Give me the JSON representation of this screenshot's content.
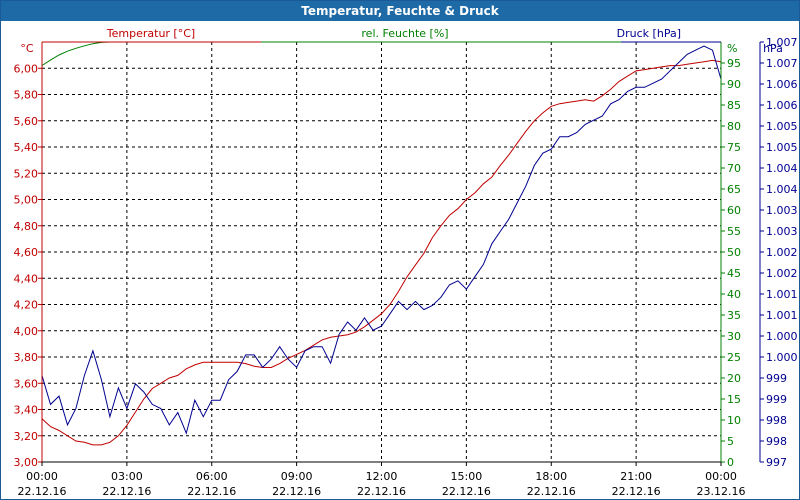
{
  "window": {
    "title": "Temperatur, Feuchte & Druck"
  },
  "colors": {
    "temp": "#c00000",
    "hum": "#008000",
    "press": "#000090",
    "grid": "#000000",
    "title_bar": "#1d6aa6"
  },
  "chart_data": {
    "type": "line",
    "title": "Temperatur, Feuchte & Druck",
    "grid": true,
    "x_ticks": [
      {
        "time": "00:00",
        "date": "22.12.16"
      },
      {
        "time": "03:00",
        "date": "22.12.16"
      },
      {
        "time": "06:00",
        "date": "22.12.16"
      },
      {
        "time": "09:00",
        "date": "22.12.16"
      },
      {
        "time": "12:00",
        "date": "22.12.16"
      },
      {
        "time": "15:00",
        "date": "22.12.16"
      },
      {
        "time": "18:00",
        "date": "22.12.16"
      },
      {
        "time": "21:00",
        "date": "22.12.16"
      },
      {
        "time": "00:00",
        "date": "23.12.16"
      }
    ],
    "x_range_hours": [
      0,
      24
    ],
    "axes": {
      "temp": {
        "label": "Temperatur [°C]",
        "unit": "°C",
        "range": [
          3.0,
          6.2
        ],
        "ticks": [
          "3,00",
          "3,20",
          "3,40",
          "3,60",
          "3,80",
          "4,00",
          "4,20",
          "4,40",
          "4,60",
          "4,80",
          "5,00",
          "5,20",
          "5,40",
          "5,60",
          "5,80",
          "6,00"
        ]
      },
      "hum": {
        "label": "rel. Feuchte [%]",
        "unit": "%",
        "range": [
          0,
          100
        ],
        "ticks": [
          "0",
          "5",
          "10",
          "15",
          "20",
          "25",
          "30",
          "35",
          "40",
          "45",
          "50",
          "55",
          "60",
          "65",
          "70",
          "75",
          "80",
          "85",
          "90",
          "95"
        ]
      },
      "press": {
        "label": "Druck [hPa]",
        "unit": "hPa",
        "range": [
          997,
          1007.2
        ],
        "ticks": [
          "997",
          "998",
          "998",
          "999",
          "999",
          "1.000",
          "1.000",
          "1.001",
          "1.001",
          "1.002",
          "1.002",
          "1.003",
          "1.003",
          "1.004",
          "1.004",
          "1.005",
          "1.005",
          "1.006",
          "1.006",
          "1.007",
          "1.007"
        ]
      }
    },
    "series": [
      {
        "name": "Temperatur [°C]",
        "axis": "temp",
        "x": [
          0,
          0.3,
          0.6,
          0.9,
          1.2,
          1.5,
          1.8,
          2.1,
          2.4,
          2.7,
          3.0,
          3.3,
          3.6,
          3.9,
          4.2,
          4.5,
          4.8,
          5.1,
          5.4,
          5.7,
          6.0,
          6.3,
          6.6,
          6.9,
          7.2,
          7.5,
          7.8,
          8.1,
          8.4,
          8.7,
          9.0,
          9.3,
          9.6,
          9.9,
          10.2,
          10.5,
          10.8,
          11.1,
          11.4,
          11.7,
          12.0,
          12.3,
          12.6,
          12.9,
          13.2,
          13.5,
          13.8,
          14.1,
          14.4,
          14.7,
          15.0,
          15.3,
          15.6,
          15.9,
          16.2,
          16.5,
          16.8,
          17.1,
          17.4,
          17.7,
          18.0,
          18.3,
          18.6,
          18.9,
          19.2,
          19.5,
          19.8,
          20.1,
          20.4,
          20.7,
          21.0,
          21.3,
          21.6,
          21.9,
          22.2,
          22.5,
          22.8,
          23.1,
          23.4,
          23.7,
          24.0
        ],
        "values": [
          3.33,
          3.27,
          3.24,
          3.2,
          3.16,
          3.15,
          3.13,
          3.13,
          3.15,
          3.2,
          3.28,
          3.38,
          3.48,
          3.56,
          3.6,
          3.64,
          3.66,
          3.71,
          3.74,
          3.76,
          3.76,
          3.76,
          3.76,
          3.76,
          3.75,
          3.73,
          3.72,
          3.72,
          3.75,
          3.79,
          3.82,
          3.85,
          3.89,
          3.93,
          3.95,
          3.96,
          3.97,
          3.99,
          4.03,
          4.08,
          4.13,
          4.2,
          4.3,
          4.41,
          4.5,
          4.59,
          4.71,
          4.8,
          4.88,
          4.93,
          5.0,
          5.05,
          5.12,
          5.17,
          5.26,
          5.34,
          5.43,
          5.52,
          5.6,
          5.66,
          5.71,
          5.73,
          5.74,
          5.75,
          5.76,
          5.75,
          5.79,
          5.84,
          5.9,
          5.94,
          5.98,
          5.99,
          6.0,
          6.01,
          6.02,
          6.02,
          6.03,
          6.04,
          6.05,
          6.06,
          6.05
        ]
      },
      {
        "name": "rel. Feuchte [%]",
        "axis": "hum",
        "x": [
          0,
          0.3,
          0.6,
          0.9,
          1.2,
          1.5,
          1.8,
          2.1,
          2.4,
          2.7,
          3.0,
          3.3,
          3.6,
          3.9,
          4.2,
          4.5,
          4.8,
          5.1,
          5.4,
          5.7,
          6.0,
          6.3,
          6.6,
          6.9,
          7.2,
          7.5,
          7.8,
          8.1,
          8.4,
          8.7,
          9.0,
          9.3,
          9.6,
          9.9,
          10.2,
          10.5,
          10.8,
          11.1,
          11.4,
          11.7,
          12.0,
          12.3,
          12.6,
          12.9,
          13.2,
          13.5,
          13.8,
          14.1,
          14.4,
          14.7,
          15.0,
          15.3,
          15.6,
          15.9,
          16.2,
          16.5,
          16.8,
          17.1,
          17.4,
          17.7,
          18.0,
          18.3,
          18.6,
          18.9,
          19.2,
          19.5,
          19.8,
          20.1,
          20.4,
          20.7,
          21.0,
          21.3,
          21.6,
          21.9,
          22.2,
          22.5,
          22.8,
          23.1,
          23.4,
          23.7,
          24.0
        ],
        "values": [
          94.4,
          95.7,
          96.9,
          97.8,
          98.5,
          99.1,
          99.6,
          99.9,
          100,
          100,
          100,
          100,
          100,
          100,
          100,
          100,
          100,
          100,
          100,
          100,
          100,
          100,
          100,
          100,
          100,
          100,
          100,
          100,
          100,
          100,
          100,
          100,
          100,
          100,
          100,
          100,
          100,
          100,
          100,
          100,
          100,
          100,
          100,
          100,
          100,
          100,
          100,
          100,
          100,
          100,
          100,
          100,
          100,
          100,
          100,
          100,
          100,
          100,
          100,
          100,
          100,
          100,
          100,
          100,
          100,
          100,
          100,
          100,
          100,
          100,
          100,
          100,
          100,
          100,
          100,
          100,
          100,
          100,
          100,
          100,
          100
        ]
      },
      {
        "name": "Druck [hPa]",
        "axis": "press",
        "x": [
          0,
          0.3,
          0.6,
          0.9,
          1.2,
          1.5,
          1.8,
          2.1,
          2.4,
          2.7,
          3.0,
          3.3,
          3.6,
          3.9,
          4.2,
          4.5,
          4.8,
          5.1,
          5.4,
          5.7,
          6.0,
          6.3,
          6.6,
          6.9,
          7.2,
          7.5,
          7.8,
          8.1,
          8.4,
          8.7,
          9.0,
          9.3,
          9.6,
          9.9,
          10.2,
          10.5,
          10.8,
          11.1,
          11.4,
          11.7,
          12.0,
          12.3,
          12.6,
          12.9,
          13.2,
          13.5,
          13.8,
          14.1,
          14.4,
          14.7,
          15.0,
          15.3,
          15.6,
          15.9,
          16.2,
          16.5,
          16.8,
          17.1,
          17.4,
          17.7,
          18.0,
          18.3,
          18.6,
          18.9,
          19.2,
          19.5,
          19.8,
          20.1,
          20.4,
          20.7,
          21.0,
          21.3,
          21.6,
          21.9,
          22.2,
          22.5,
          22.8,
          23.1,
          23.4,
          23.7,
          24.0
        ],
        "values": [
          999.1,
          998.4,
          998.6,
          997.9,
          998.3,
          999.1,
          999.7,
          999.0,
          998.1,
          998.8,
          998.3,
          998.9,
          998.7,
          998.4,
          998.3,
          997.9,
          998.2,
          997.7,
          998.5,
          998.1,
          998.5,
          998.5,
          999.0,
          999.2,
          999.6,
          999.6,
          999.3,
          999.5,
          999.8,
          999.5,
          999.3,
          999.7,
          999.8,
          999.8,
          999.4,
          1000.1,
          1000.4,
          1000.2,
          1000.5,
          1000.2,
          1000.3,
          1000.6,
          1000.9,
          1000.7,
          1000.9,
          1000.7,
          1000.8,
          1001.0,
          1001.3,
          1001.4,
          1001.2,
          1001.5,
          1001.8,
          1002.3,
          1002.6,
          1002.9,
          1003.3,
          1003.7,
          1004.2,
          1004.5,
          1004.6,
          1004.9,
          1004.9,
          1005.0,
          1005.2,
          1005.3,
          1005.4,
          1005.7,
          1005.8,
          1006.0,
          1006.1,
          1006.1,
          1006.2,
          1006.3,
          1006.5,
          1006.7,
          1006.9,
          1007.0,
          1007.1,
          1007.0,
          1006.3
        ]
      }
    ]
  }
}
